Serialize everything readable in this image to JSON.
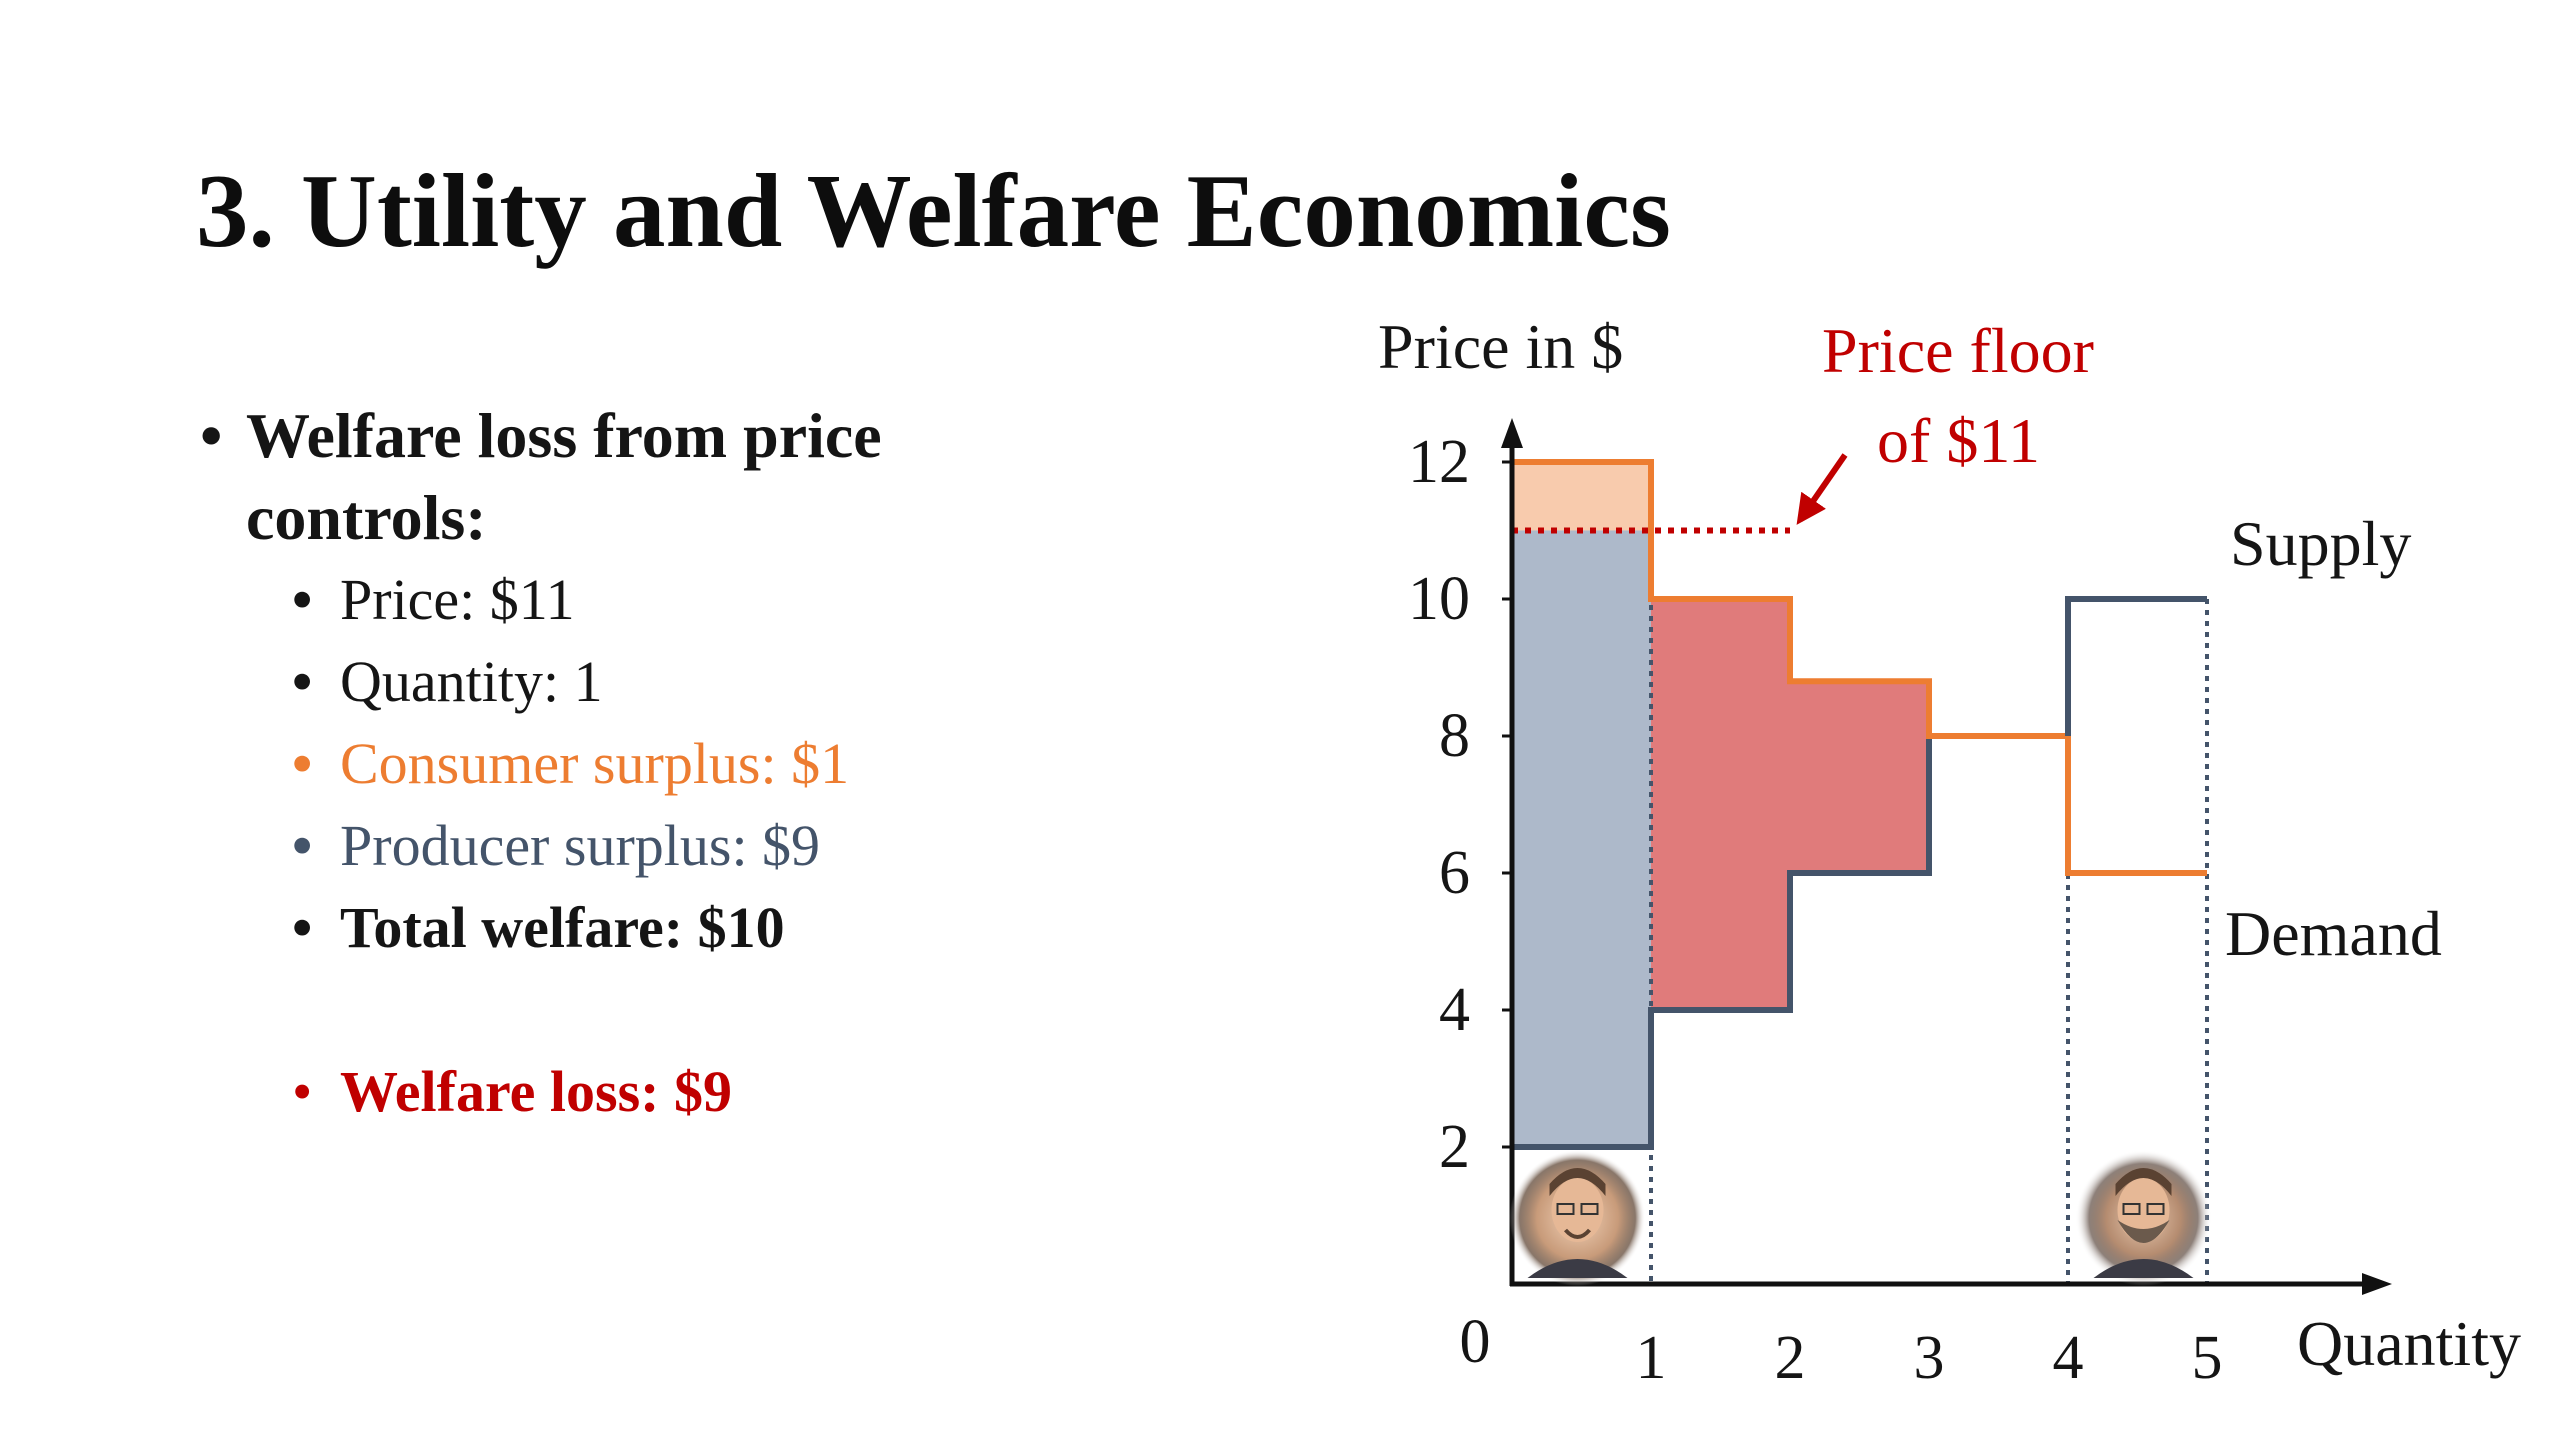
{
  "slide": {
    "title": "3. Utility and Welfare Economics",
    "bullets": {
      "main": "Welfare loss from price controls:",
      "items": [
        {
          "text": "Price: $11",
          "color": "#151515",
          "bold": false
        },
        {
          "text": "Quantity: 1",
          "color": "#151515",
          "bold": false
        },
        {
          "text": "Consumer surplus: $1",
          "color": "#ed7d31",
          "bold": false
        },
        {
          "text": "Producer surplus: $9",
          "color": "#44546a",
          "bold": false
        },
        {
          "text": "Total welfare: $10",
          "color": "#151515",
          "bold": true
        }
      ],
      "loss": {
        "text": "Welfare loss: $9",
        "color": "#c00000"
      }
    }
  },
  "chart_data": {
    "type": "area",
    "ylabel": "Price in $",
    "xlabel": "Quantity",
    "origin_label": "0",
    "xlim": [
      0,
      5
    ],
    "ylim": [
      0,
      12
    ],
    "x_ticks": [
      "1",
      "2",
      "3",
      "4",
      "5"
    ],
    "y_ticks": [
      "2",
      "4",
      "6",
      "8",
      "10",
      "12"
    ],
    "series": [
      {
        "name": "Supply",
        "steps": [
          {
            "x0": 0,
            "x1": 1,
            "y": 2
          },
          {
            "x0": 1,
            "x1": 2,
            "y": 4
          },
          {
            "x0": 2,
            "x1": 3,
            "y": 6
          },
          {
            "x0": 3,
            "x1": 4,
            "y": 8
          },
          {
            "x0": 4,
            "x1": 5,
            "y": 10
          }
        ],
        "color": "#44546a"
      },
      {
        "name": "Demand",
        "steps": [
          {
            "x0": 0,
            "x1": 1,
            "y": 12
          },
          {
            "x0": 1,
            "x1": 2,
            "y": 10
          },
          {
            "x0": 2,
            "x1": 3,
            "y": 8.8
          },
          {
            "x0": 3,
            "x1": 4,
            "y": 8
          },
          {
            "x0": 4,
            "x1": 5,
            "y": 6
          }
        ],
        "color": "#ed7d31"
      }
    ],
    "price_floor": {
      "value": 11,
      "x_end": 2,
      "label_line1": "Price floor",
      "label_line2": "of $11",
      "color": "#c00000"
    },
    "areas": {
      "consumer_surplus": {
        "x0": 0,
        "x1": 1,
        "y0": 11,
        "y1": 12,
        "color": "#f8cbad"
      },
      "producer_surplus": {
        "x0": 0,
        "x1": 1,
        "y0": 2,
        "y1": 11,
        "color": "#adb9ca"
      },
      "welfare_loss": [
        {
          "x0": 1,
          "x1": 2,
          "y0": 4,
          "y1": 10
        },
        {
          "x0": 2,
          "x1": 3,
          "y0": 6,
          "y1": 8.8
        }
      ],
      "welfare_loss_color": "#e07b7b"
    },
    "dotted_verticals": [
      1,
      4,
      5
    ],
    "avatars": [
      {
        "name": "buyer-avatar",
        "x_center": 0.5
      },
      {
        "name": "seller-avatar",
        "x_center": 4.5
      }
    ]
  }
}
